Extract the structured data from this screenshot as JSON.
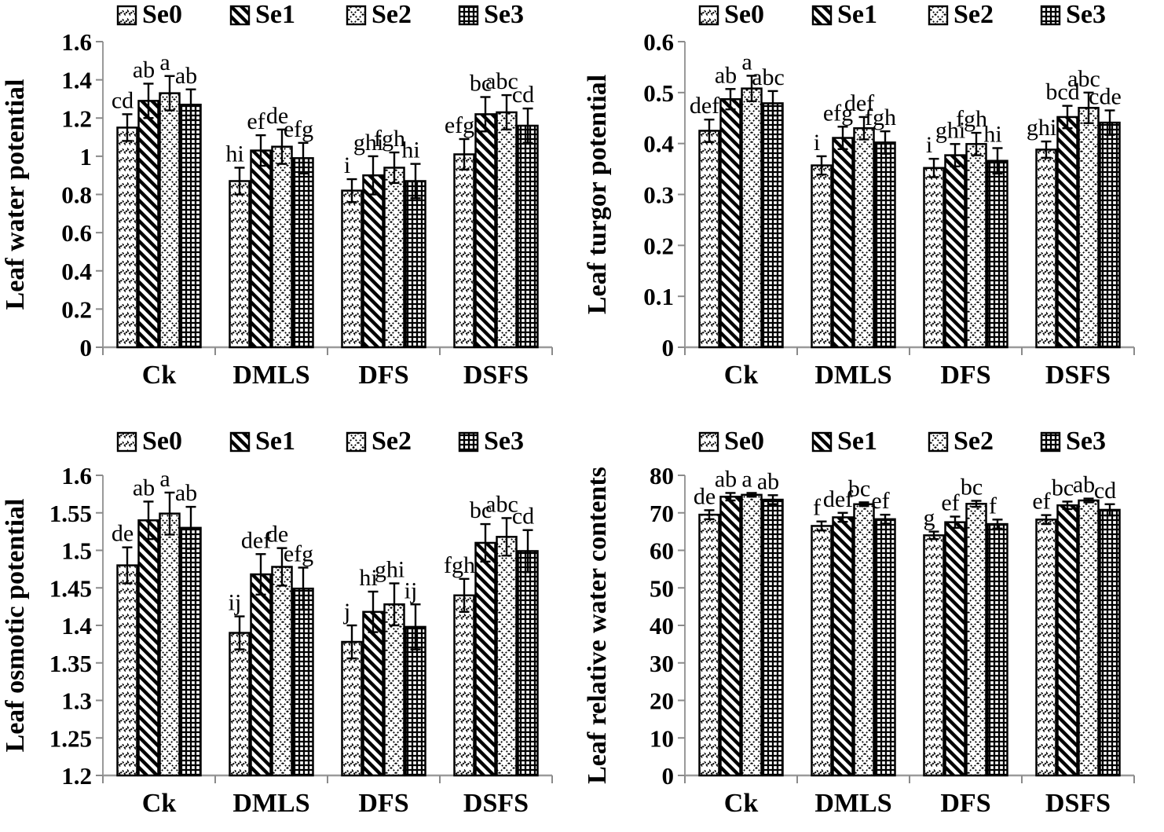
{
  "figure": {
    "background": "#ffffff",
    "text_color": "#000000",
    "axis_line_color": "#9a9a9a",
    "tick_color": "#8a8a8a",
    "bar_border_color": "#000000",
    "error_bar_color": "#000000"
  },
  "legend": {
    "entries": [
      {
        "label": "Se0",
        "pattern": "wave"
      },
      {
        "label": "Se1",
        "pattern": "diagonal-stripe"
      },
      {
        "label": "Se2",
        "pattern": "diamond-lattice"
      },
      {
        "label": "Se3",
        "pattern": "cross-weave"
      }
    ]
  },
  "chart_data": [
    {
      "type": "bar",
      "title": "",
      "ylabel": "Leaf water potential",
      "xlabel": "",
      "ylim": [
        0,
        1.6
      ],
      "yticks": [
        "0",
        "0.2",
        "0.4",
        "0.6",
        "0.8",
        "1",
        "1.2",
        "1.4",
        "1.6"
      ],
      "grid": false,
      "legend_position": "top",
      "categories": [
        "Ck",
        "DMLS",
        "DFS",
        "DSFS"
      ],
      "series": [
        {
          "name": "Se0",
          "pattern": "wave",
          "values": [
            1.15,
            0.87,
            0.82,
            1.01
          ],
          "errors": [
            0.07,
            0.07,
            0.06,
            0.08
          ],
          "letters": [
            "cd",
            "hi",
            "i",
            "efg"
          ]
        },
        {
          "name": "Se1",
          "pattern": "diagonal-stripe",
          "values": [
            1.29,
            1.03,
            0.9,
            1.22
          ],
          "errors": [
            0.09,
            0.08,
            0.1,
            0.09
          ],
          "letters": [
            "ab",
            "ef",
            "ghi",
            "bc"
          ]
        },
        {
          "name": "Se2",
          "pattern": "diamond-lattice",
          "values": [
            1.33,
            1.05,
            0.94,
            1.23
          ],
          "errors": [
            0.09,
            0.09,
            0.08,
            0.09
          ],
          "letters": [
            "a",
            "de",
            "fgh",
            "abc"
          ]
        },
        {
          "name": "Se3",
          "pattern": "cross-weave",
          "values": [
            1.27,
            0.99,
            0.87,
            1.16
          ],
          "errors": [
            0.08,
            0.08,
            0.09,
            0.09
          ],
          "letters": [
            "ab",
            "efg",
            "hi",
            "cd"
          ]
        }
      ]
    },
    {
      "type": "bar",
      "title": "",
      "ylabel": "Leaf turgor potential",
      "xlabel": "",
      "ylim": [
        0,
        0.6
      ],
      "yticks": [
        "0",
        "0.1",
        "0.2",
        "0.3",
        "0.4",
        "0.5",
        "0.6"
      ],
      "grid": false,
      "legend_position": "top",
      "categories": [
        "Ck",
        "DMLS",
        "DFS",
        "DSFS"
      ],
      "series": [
        {
          "name": "Se0",
          "pattern": "wave",
          "values": [
            0.425,
            0.357,
            0.352,
            0.388
          ],
          "errors": [
            0.022,
            0.018,
            0.018,
            0.016
          ],
          "letters": [
            "def",
            "i",
            "i",
            "ghi"
          ]
        },
        {
          "name": "Se1",
          "pattern": "diagonal-stripe",
          "values": [
            0.487,
            0.411,
            0.377,
            0.452
          ],
          "errors": [
            0.02,
            0.022,
            0.022,
            0.022
          ],
          "letters": [
            "ab",
            "efg",
            "ghi",
            "bcd"
          ]
        },
        {
          "name": "Se2",
          "pattern": "diamond-lattice",
          "values": [
            0.508,
            0.43,
            0.399,
            0.47
          ],
          "errors": [
            0.025,
            0.022,
            0.022,
            0.03
          ],
          "letters": [
            "a",
            "def",
            "fgh",
            "abc"
          ]
        },
        {
          "name": "Se3",
          "pattern": "cross-weave",
          "values": [
            0.479,
            0.402,
            0.366,
            0.441
          ],
          "errors": [
            0.024,
            0.022,
            0.025,
            0.024
          ],
          "letters": [
            "abc",
            "fgh",
            "hi",
            "cde"
          ]
        }
      ]
    },
    {
      "type": "bar",
      "title": "",
      "ylabel": "Leaf osmotic potential",
      "xlabel": "",
      "ylim": [
        1.2,
        1.6
      ],
      "yticks": [
        "1.2",
        "1.25",
        "1.3",
        "1.35",
        "1.4",
        "1.45",
        "1.5",
        "1.55",
        "1.6"
      ],
      "grid": false,
      "legend_position": "top",
      "categories": [
        "Ck",
        "DMLS",
        "DFS",
        "DSFS"
      ],
      "series": [
        {
          "name": "Se0",
          "pattern": "wave",
          "values": [
            1.48,
            1.39,
            1.378,
            1.44
          ],
          "errors": [
            0.024,
            0.022,
            0.022,
            0.022
          ],
          "letters": [
            "de",
            "ij",
            "j",
            "fgh"
          ]
        },
        {
          "name": "Se1",
          "pattern": "diagonal-stripe",
          "values": [
            1.54,
            1.468,
            1.418,
            1.51
          ],
          "errors": [
            0.025,
            0.027,
            0.027,
            0.025
          ],
          "letters": [
            "ab",
            "def",
            "hi",
            "bc"
          ]
        },
        {
          "name": "Se2",
          "pattern": "diamond-lattice",
          "values": [
            1.549,
            1.478,
            1.428,
            1.518
          ],
          "errors": [
            0.028,
            0.025,
            0.028,
            0.025
          ],
          "letters": [
            "a",
            "de",
            "ghi",
            "abc"
          ]
        },
        {
          "name": "Se3",
          "pattern": "cross-weave",
          "values": [
            1.53,
            1.449,
            1.398,
            1.499
          ],
          "errors": [
            0.028,
            0.028,
            0.03,
            0.028
          ],
          "letters": [
            "ab",
            "efg",
            "ij",
            "cd"
          ]
        }
      ]
    },
    {
      "type": "bar",
      "title": "",
      "ylabel": "Leaf relative water contents",
      "xlabel": "",
      "ylim": [
        0,
        80
      ],
      "yticks": [
        "0",
        "10",
        "20",
        "30",
        "40",
        "50",
        "60",
        "70",
        "80"
      ],
      "grid": false,
      "legend_position": "top",
      "categories": [
        "Ck",
        "DMLS",
        "DFS",
        "DSFS"
      ],
      "series": [
        {
          "name": "Se0",
          "pattern": "wave",
          "values": [
            69.5,
            66.5,
            64.0,
            68.2
          ],
          "errors": [
            1.2,
            1.2,
            1.0,
            1.2
          ],
          "letters": [
            "de",
            "f",
            "g",
            "ef"
          ]
        },
        {
          "name": "Se1",
          "pattern": "diagonal-stripe",
          "values": [
            74.3,
            68.8,
            67.5,
            72.0
          ],
          "errors": [
            1.0,
            1.2,
            1.5,
            1.0
          ],
          "letters": [
            "ab",
            "def",
            "ef",
            "bc"
          ]
        },
        {
          "name": "Se2",
          "pattern": "diamond-lattice",
          "values": [
            74.8,
            72.3,
            72.4,
            73.3
          ],
          "errors": [
            0.5,
            0.5,
            0.8,
            0.5
          ],
          "letters": [
            "a",
            "bc",
            "bc",
            "ab"
          ]
        },
        {
          "name": "Se3",
          "pattern": "cross-weave",
          "values": [
            73.5,
            68.3,
            67.0,
            70.8
          ],
          "errors": [
            1.2,
            1.2,
            1.2,
            1.5
          ],
          "letters": [
            "ab",
            "ef",
            "f",
            "cd"
          ]
        }
      ]
    }
  ]
}
